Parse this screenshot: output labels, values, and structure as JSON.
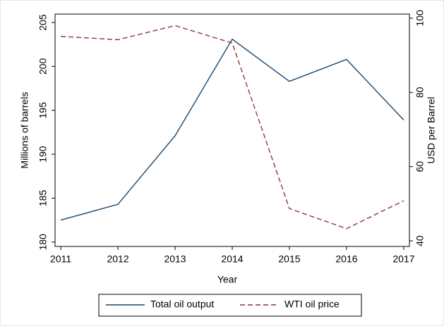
{
  "chart_data": {
    "type": "line",
    "x": [
      2011,
      2012,
      2013,
      2014,
      2015,
      2016,
      2017
    ],
    "xlim": [
      2010.9,
      2017.1
    ],
    "xticks": [
      2011,
      2012,
      2013,
      2014,
      2015,
      2016,
      2017
    ],
    "xlabel": "Year",
    "ylabel": "Millions of barrels",
    "y2label": "USD per Barrel",
    "ylim": [
      179.5,
      205.96
    ],
    "yticks": [
      180,
      185,
      190,
      195,
      200,
      205
    ],
    "y2lim": [
      38.5,
      101.1
    ],
    "y2ticks": [
      40,
      60,
      80,
      100
    ],
    "legend": "bottom",
    "series": [
      {
        "name": "Total oil output",
        "color": "#1a476f",
        "dash": "solid",
        "values": [
          182.5,
          184.3,
          192.1,
          203.1,
          198.3,
          200.8,
          193.9
        ]
      },
      {
        "name": "WTI oil price",
        "color": "#90353b",
        "dash": "dashed",
        "axis": "y2",
        "values": [
          95.1,
          94.2,
          98.0,
          93.3,
          48.7,
          43.3,
          50.8
        ]
      }
    ]
  }
}
